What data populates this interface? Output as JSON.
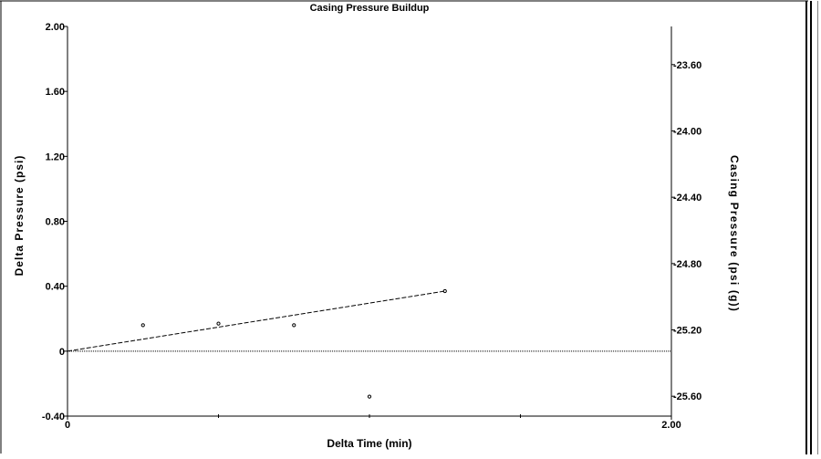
{
  "chart_data": {
    "type": "scatter",
    "title": "Casing Pressure Buildup",
    "xlabel": "Delta Time (min)",
    "ylabel": "Delta Pressure (psi)",
    "y2label": "Casing Pressure (psi (g))",
    "xlim": [
      0,
      2.0
    ],
    "ylim": [
      -0.4,
      2.0
    ],
    "y2lim": [
      -25.72,
      -23.37
    ],
    "x_tick_labels": [
      "0",
      "2.00"
    ],
    "x_ticks": [
      0,
      2.0
    ],
    "y_tick_labels": [
      "2.00",
      "1.60",
      "1.20",
      "0.80",
      "0.40",
      "0",
      "-0.40"
    ],
    "y_ticks": [
      2.0,
      1.6,
      1.2,
      0.8,
      0.4,
      0,
      -0.4
    ],
    "y2_tick_labels": [
      "-23.60",
      "-24.00",
      "-24.40",
      "-24.80",
      "-25.20",
      "-25.60"
    ],
    "y2_ticks": [
      -23.6,
      -24.0,
      -24.4,
      -24.8,
      -25.2,
      -25.6
    ],
    "grid": false,
    "series": [
      {
        "kind": "points",
        "x": [
          0.25,
          0.5,
          0.75,
          1.0,
          1.25
        ],
        "y": [
          0.16,
          0.17,
          0.16,
          -0.28,
          0.37
        ]
      },
      {
        "kind": "trend-line",
        "style": "dashed",
        "x": [
          0,
          1.25
        ],
        "y": [
          0,
          0.37
        ]
      },
      {
        "kind": "zero-line",
        "style": "dotted",
        "x": [
          0,
          2.0
        ],
        "y": [
          0,
          0
        ]
      }
    ],
    "colors": {
      "line": "#000000",
      "background": "#ffffff"
    }
  }
}
